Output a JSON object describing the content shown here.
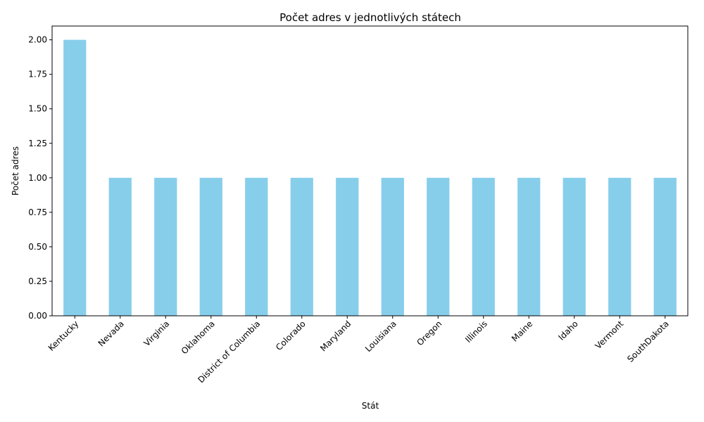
{
  "chart_data": {
    "type": "bar",
    "title": "Počet adres v jednotlivých státech",
    "xlabel": "Stát",
    "ylabel": "Počet adres",
    "categories": [
      "Kentucky",
      "Nevada",
      "Virginia",
      "Oklahoma",
      "District of Columbia",
      "Colorado",
      "Maryland",
      "Louisiana",
      "Oregon",
      "Illinois",
      "Maine",
      "Idaho",
      "Vermont",
      "SouthDakota"
    ],
    "values": [
      2,
      1,
      1,
      1,
      1,
      1,
      1,
      1,
      1,
      1,
      1,
      1,
      1,
      1
    ],
    "ylim": [
      0,
      2.1
    ],
    "yticks": [
      "0.00",
      "0.25",
      "0.50",
      "0.75",
      "1.00",
      "1.25",
      "1.50",
      "1.75",
      "2.00"
    ],
    "bar_color": "#87ceeb",
    "grid": false
  }
}
